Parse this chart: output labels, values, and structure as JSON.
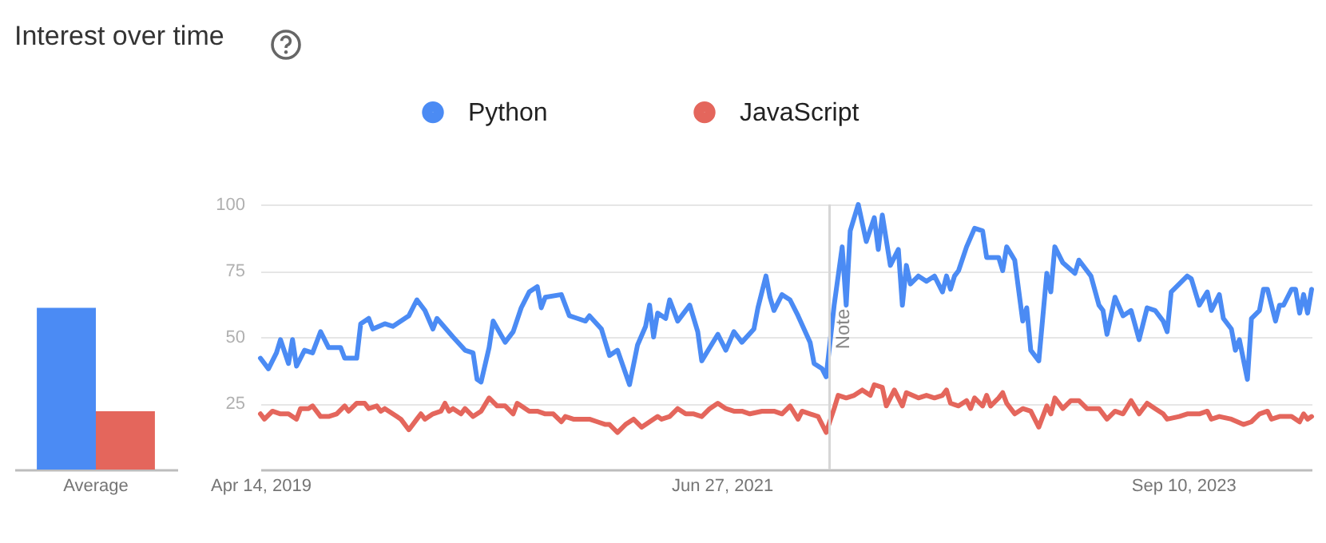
{
  "chart_data": [
    {
      "type": "bar",
      "title": "Interest over time",
      "categories": [
        "Average"
      ],
      "series": [
        {
          "color": "#4b8bf4",
          "values": [
            61
          ]
        },
        {
          "color": "#e4665c",
          "values": [
            22
          ]
        }
      ],
      "ylim": [
        0,
        100
      ],
      "yticks": [
        25,
        50,
        75,
        100
      ],
      "tick_labels": "x"
    },
    {
      "type": "line",
      "series": [
        {
          "name": "Python",
          "color": "#4b8bf4",
          "x": [
            "2019-04-14",
            "2019-04-28",
            "2019-05-12",
            "2019-05-19",
            "2019-06-02",
            "2019-06-09",
            "2019-06-16",
            "2019-06-30",
            "2019-07-14",
            "2019-07-28",
            "2019-08-11",
            "2019-09-01",
            "2019-09-08",
            "2019-09-29",
            "2019-10-06",
            "2019-10-20",
            "2019-10-27",
            "2019-11-17",
            "2019-12-01",
            "2019-12-29",
            "2020-01-12",
            "2020-01-26",
            "2020-02-09",
            "2020-02-16",
            "2020-03-15",
            "2020-04-05",
            "2020-04-19",
            "2020-04-26",
            "2020-05-03",
            "2020-05-17",
            "2020-05-24",
            "2020-06-14",
            "2020-06-28",
            "2020-07-12",
            "2020-07-26",
            "2020-08-09",
            "2020-08-16",
            "2020-08-23",
            "2020-09-20",
            "2020-10-04",
            "2020-10-18",
            "2020-11-01",
            "2020-11-08",
            "2020-11-29",
            "2020-12-13",
            "2020-12-27",
            "2021-01-17",
            "2021-01-31",
            "2021-02-14",
            "2021-02-21",
            "2021-02-28",
            "2021-03-07",
            "2021-03-21",
            "2021-03-28",
            "2021-04-11",
            "2021-05-02",
            "2021-05-16",
            "2021-05-23",
            "2021-06-06",
            "2021-06-20",
            "2021-07-04",
            "2021-07-18",
            "2021-08-01",
            "2021-08-22",
            "2021-08-29",
            "2021-09-05",
            "2021-09-12",
            "2021-09-19",
            "2021-09-26",
            "2021-10-10",
            "2021-10-24",
            "2021-11-07",
            "2021-11-28",
            "2021-12-05",
            "2021-12-19",
            "2021-12-26",
            "2022-01-09",
            "2022-01-23",
            "2022-01-30",
            "2022-02-06",
            "2022-02-20",
            "2022-03-06",
            "2022-03-20",
            "2022-03-27",
            "2022-04-03",
            "2022-04-17",
            "2022-05-01",
            "2022-05-08",
            "2022-05-15",
            "2022-05-22",
            "2022-06-05",
            "2022-06-19",
            "2022-07-03",
            "2022-07-17",
            "2022-07-24",
            "2022-07-31",
            "2022-08-07",
            "2022-08-14",
            "2022-08-28",
            "2022-09-11",
            "2022-09-25",
            "2022-10-02",
            "2022-10-23",
            "2022-10-30",
            "2022-11-06",
            "2022-11-20",
            "2022-12-04",
            "2022-12-11",
            "2022-12-18",
            "2023-01-01",
            "2023-01-15",
            "2023-01-22",
            "2023-01-29",
            "2023-02-12",
            "2023-03-05",
            "2023-03-12",
            "2023-03-26",
            "2023-04-02",
            "2023-04-16",
            "2023-04-23",
            "2023-04-30",
            "2023-05-14",
            "2023-05-28",
            "2023-06-11",
            "2023-06-25",
            "2023-07-09",
            "2023-07-23",
            "2023-08-06",
            "2023-08-13",
            "2023-08-20",
            "2023-09-17",
            "2023-09-24",
            "2023-10-08",
            "2023-10-22",
            "2023-10-29",
            "2023-11-12",
            "2023-11-19",
            "2023-12-03",
            "2023-12-10",
            "2023-12-17",
            "2023-12-31",
            "2024-01-07",
            "2024-01-21",
            "2024-01-28",
            "2024-02-04",
            "2024-02-18",
            "2024-02-25",
            "2024-03-03",
            "2024-03-17",
            "2024-03-24",
            "2024-03-31",
            "2024-04-07",
            "2024-04-14",
            "2024-04-21"
          ],
          "values": [
            42,
            38,
            44,
            49,
            40,
            49,
            39,
            45,
            44,
            52,
            46,
            46,
            42,
            42,
            55,
            57,
            53,
            55,
            54,
            58,
            64,
            60,
            53,
            57,
            50,
            45,
            44,
            34,
            33,
            46,
            56,
            48,
            52,
            61,
            67,
            69,
            61,
            65,
            66,
            58,
            57,
            56,
            58,
            53,
            43,
            45,
            32,
            47,
            54,
            62,
            50,
            59,
            57,
            64,
            56,
            62,
            52,
            41,
            46,
            51,
            45,
            52,
            48,
            53,
            61,
            67,
            73,
            65,
            60,
            66,
            64,
            58,
            48,
            40,
            38,
            35,
            62,
            84,
            62,
            90,
            100,
            86,
            95,
            83,
            96,
            77,
            83,
            62,
            77,
            70,
            73,
            71,
            73,
            67,
            73,
            68,
            73,
            75,
            84,
            91,
            90,
            80,
            80,
            75,
            84,
            79,
            56,
            61,
            45,
            41,
            74,
            67,
            84,
            78,
            74,
            79,
            75,
            73,
            62,
            60,
            51,
            65,
            58,
            60,
            49,
            61,
            60,
            56,
            52,
            67,
            73,
            72,
            62,
            67,
            60,
            66,
            57,
            53,
            45,
            49,
            34,
            57,
            60,
            68,
            68,
            56,
            62,
            62,
            68,
            68,
            59,
            66,
            59,
            68
          ]
        },
        {
          "name": "JavaScript",
          "color": "#e4665c",
          "x": [
            "2019-04-14",
            "2019-04-21",
            "2019-05-05",
            "2019-05-19",
            "2019-06-02",
            "2019-06-16",
            "2019-06-23",
            "2019-07-07",
            "2019-07-14",
            "2019-07-28",
            "2019-08-11",
            "2019-08-25",
            "2019-09-08",
            "2019-09-15",
            "2019-09-29",
            "2019-10-13",
            "2019-10-20",
            "2019-11-03",
            "2019-11-10",
            "2019-11-17",
            "2019-12-08",
            "2019-12-15",
            "2019-12-29",
            "2020-01-12",
            "2020-01-19",
            "2020-01-26",
            "2020-02-09",
            "2020-02-23",
            "2020-03-01",
            "2020-03-08",
            "2020-03-15",
            "2020-03-29",
            "2020-04-05",
            "2020-04-19",
            "2020-05-03",
            "2020-05-17",
            "2020-05-31",
            "2020-06-14",
            "2020-06-28",
            "2020-07-05",
            "2020-07-12",
            "2020-07-26",
            "2020-08-09",
            "2020-08-23",
            "2020-09-06",
            "2020-09-20",
            "2020-09-27",
            "2020-10-11",
            "2020-10-25",
            "2020-11-08",
            "2020-11-22",
            "2020-12-06",
            "2020-12-13",
            "2020-12-27",
            "2021-01-10",
            "2021-01-24",
            "2021-02-07",
            "2021-02-21",
            "2021-03-07",
            "2021-03-14",
            "2021-03-28",
            "2021-04-11",
            "2021-04-25",
            "2021-05-09",
            "2021-05-23",
            "2021-06-06",
            "2021-06-20",
            "2021-07-04",
            "2021-07-18",
            "2021-08-01",
            "2021-08-15",
            "2021-09-05",
            "2021-09-26",
            "2021-10-10",
            "2021-10-24",
            "2021-11-07",
            "2021-11-14",
            "2021-11-28",
            "2021-12-12",
            "2021-12-26",
            "2022-01-09",
            "2022-01-16",
            "2022-01-30",
            "2022-02-13",
            "2022-02-27",
            "2022-03-13",
            "2022-03-20",
            "2022-04-03",
            "2022-04-10",
            "2022-04-24",
            "2022-05-08",
            "2022-05-15",
            "2022-06-05",
            "2022-06-19",
            "2022-07-03",
            "2022-07-17",
            "2022-07-24",
            "2022-07-31",
            "2022-08-14",
            "2022-08-28",
            "2022-09-04",
            "2022-09-11",
            "2022-09-25",
            "2022-10-02",
            "2022-10-09",
            "2022-10-23",
            "2022-10-30",
            "2022-11-06",
            "2022-11-20",
            "2022-12-04",
            "2022-12-18",
            "2023-01-01",
            "2023-01-15",
            "2023-01-22",
            "2023-01-29",
            "2023-02-12",
            "2023-02-26",
            "2023-03-12",
            "2023-03-26",
            "2023-04-16",
            "2023-04-30",
            "2023-05-14",
            "2023-05-28",
            "2023-06-11",
            "2023-06-25",
            "2023-07-09",
            "2023-07-23",
            "2023-08-06",
            "2023-08-13",
            "2023-09-03",
            "2023-09-17",
            "2023-10-08",
            "2023-10-22",
            "2023-10-29",
            "2023-11-12",
            "2023-12-03",
            "2023-12-24",
            "2024-01-07",
            "2024-01-21",
            "2024-02-04",
            "2024-02-11",
            "2024-02-25",
            "2024-03-17",
            "2024-03-31",
            "2024-04-07",
            "2024-04-14",
            "2024-04-21"
          ],
          "values": [
            21,
            19,
            22,
            21,
            21,
            19,
            23,
            23,
            24,
            20,
            20,
            21,
            24,
            22,
            25,
            25,
            23,
            24,
            22,
            23,
            20,
            19,
            15,
            19,
            21,
            19,
            21,
            22,
            25,
            22,
            23,
            21,
            23,
            20,
            22,
            27,
            24,
            24,
            21,
            25,
            24,
            22,
            22,
            21,
            21,
            18,
            20,
            19,
            19,
            19,
            18,
            17,
            17,
            14,
            17,
            19,
            16,
            18,
            20,
            19,
            20,
            23,
            21,
            21,
            20,
            23,
            25,
            23,
            22,
            22,
            21,
            22,
            22,
            21,
            24,
            19,
            22,
            21,
            20,
            14,
            23,
            28,
            27,
            28,
            30,
            28,
            32,
            31,
            24,
            30,
            24,
            29,
            27,
            28,
            27,
            28,
            30,
            25,
            24,
            26,
            23,
            27,
            24,
            28,
            24,
            27,
            29,
            25,
            21,
            23,
            22,
            16,
            24,
            21,
            27,
            23,
            26,
            26,
            23,
            23,
            19,
            22,
            21,
            26,
            21,
            25,
            23,
            21,
            19,
            20,
            21,
            21,
            22,
            19,
            20,
            19,
            17,
            18,
            21,
            22,
            19,
            20,
            20,
            18,
            21,
            19,
            20
          ]
        }
      ],
      "xlim": [
        "2019-04-14",
        "2024-04-21"
      ],
      "xticks": [
        {
          "value": "2019-04-14",
          "label": "Apr 14, 2019"
        },
        {
          "value": "2021-06-27",
          "label": "Jun 27, 2021"
        },
        {
          "value": "2023-09-10",
          "label": "Sep 10, 2023"
        }
      ],
      "ylim": [
        0,
        100
      ],
      "yticks": [
        25,
        50,
        75,
        100
      ],
      "grid": "y",
      "legend": "top",
      "ref_lines": [
        {
          "axis": "x",
          "value": "2022-01-01",
          "label": "Note"
        }
      ]
    }
  ]
}
